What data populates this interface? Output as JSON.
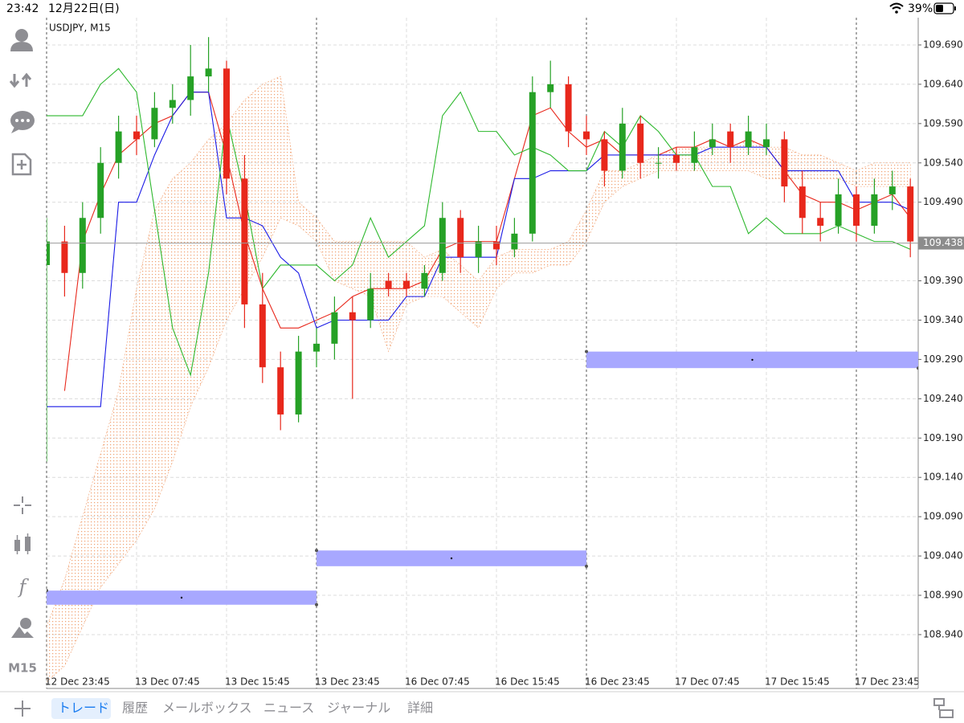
{
  "status_bar": {
    "time": "23:42",
    "date": "12月22日(日)",
    "battery": "39%"
  },
  "toolbar": {
    "timeframe": "M15"
  },
  "tabs": [
    "トレード",
    "履歴",
    "メールボックス",
    "ニュース",
    "ジャーナル",
    "詳細"
  ],
  "chart_data": {
    "type": "candlestick",
    "title": "USDJPY, M15",
    "categories": [
      "12 Dec 23:45",
      null,
      null,
      null,
      null,
      "13 Dec 07:45",
      null,
      null,
      null,
      null,
      "13 Dec 15:45",
      null,
      null,
      null,
      null,
      "13 Dec 23:45",
      null,
      null,
      null,
      null,
      "16 Dec 07:45",
      null,
      null,
      null,
      null,
      "16 Dec 15:45",
      null,
      null,
      null,
      null,
      "16 Dec 23:45",
      null,
      null,
      null,
      null,
      "17 Dec 07:45",
      null,
      null,
      null,
      null,
      "17 Dec 15:45",
      null,
      null,
      null,
      null,
      "17 Dec 23:45",
      null,
      null,
      null
    ],
    "open": [
      109.41,
      109.44,
      109.4,
      109.47,
      109.54,
      109.58,
      109.57,
      109.61,
      109.62,
      109.65,
      109.66,
      109.52,
      109.36,
      109.28,
      109.22,
      109.3,
      109.31,
      109.35,
      109.34,
      109.39,
      109.39,
      109.38,
      109.4,
      109.47,
      109.42,
      109.44,
      109.43,
      109.45,
      109.63,
      109.64,
      109.58,
      109.57,
      109.53,
      109.59,
      109.54,
      109.55,
      109.54,
      109.56,
      109.58,
      109.56,
      109.56,
      109.57,
      109.51,
      109.47,
      109.46,
      109.5,
      109.46,
      109.5,
      109.51
    ],
    "high": [
      109.47,
      109.46,
      109.49,
      109.56,
      109.6,
      109.6,
      109.63,
      109.64,
      109.69,
      109.7,
      109.67,
      109.55,
      109.4,
      109.3,
      109.32,
      109.33,
      109.37,
      109.37,
      109.4,
      109.4,
      109.4,
      109.41,
      109.49,
      109.48,
      109.46,
      109.46,
      109.47,
      109.65,
      109.67,
      109.65,
      109.6,
      109.58,
      109.61,
      109.6,
      109.56,
      109.56,
      109.58,
      109.59,
      109.59,
      109.6,
      109.59,
      109.58,
      109.53,
      109.49,
      109.52,
      109.51,
      109.52,
      109.53,
      109.52
    ],
    "low": [
      109.16,
      109.37,
      109.38,
      109.45,
      109.52,
      109.55,
      109.56,
      109.59,
      109.6,
      109.63,
      109.5,
      109.33,
      109.26,
      109.2,
      109.21,
      109.28,
      109.29,
      109.24,
      109.33,
      109.37,
      109.37,
      109.37,
      109.39,
      109.4,
      109.4,
      109.41,
      109.42,
      109.44,
      109.61,
      109.56,
      109.55,
      109.51,
      109.52,
      109.52,
      109.52,
      109.53,
      109.53,
      109.55,
      109.54,
      109.55,
      109.55,
      109.49,
      109.45,
      109.44,
      109.45,
      109.44,
      109.45,
      109.48,
      109.42
    ],
    "close": [
      109.44,
      109.4,
      109.47,
      109.54,
      109.58,
      109.57,
      109.61,
      109.62,
      109.65,
      109.66,
      109.52,
      109.36,
      109.28,
      109.22,
      109.3,
      109.31,
      109.35,
      109.34,
      109.38,
      109.38,
      109.38,
      109.4,
      109.47,
      109.42,
      109.44,
      109.43,
      109.45,
      109.63,
      109.64,
      109.58,
      109.57,
      109.53,
      109.59,
      109.54,
      109.54,
      109.54,
      109.56,
      109.57,
      109.56,
      109.58,
      109.57,
      109.51,
      109.47,
      109.46,
      109.5,
      109.46,
      109.5,
      109.51,
      109.44
    ],
    "up_color": "#26a126",
    "down_color": "#e8281c",
    "lines": [
      {
        "color": "#e8281c",
        "values": [
          null,
          109.25,
          109.44,
          109.5,
          109.55,
          109.57,
          109.59,
          109.6,
          109.63,
          109.63,
          109.55,
          109.45,
          109.38,
          109.33,
          109.33,
          109.34,
          109.35,
          109.37,
          109.38,
          109.38,
          109.38,
          109.39,
          109.43,
          109.44,
          109.44,
          109.44,
          109.52,
          109.6,
          109.61,
          109.58,
          109.56,
          109.57,
          109.55,
          109.55,
          109.55,
          109.56,
          109.56,
          109.57,
          109.56,
          109.57,
          109.56,
          109.53,
          109.5,
          109.49,
          109.49,
          109.48,
          109.49,
          109.5,
          109.47
        ]
      },
      {
        "color": "#1a1ae6",
        "values": [
          109.23,
          109.23,
          109.23,
          109.23,
          109.49,
          109.49,
          109.55,
          109.6,
          109.63,
          109.63,
          109.47,
          109.47,
          109.46,
          109.42,
          109.4,
          109.33,
          109.34,
          109.34,
          109.34,
          109.34,
          109.37,
          109.37,
          109.42,
          109.42,
          109.42,
          109.42,
          109.52,
          109.52,
          109.53,
          109.53,
          109.53,
          109.55,
          109.55,
          109.55,
          109.55,
          109.55,
          109.55,
          109.56,
          109.56,
          109.56,
          109.56,
          109.53,
          109.53,
          109.53,
          109.53,
          109.49,
          109.49,
          109.49,
          109.48
        ]
      },
      {
        "color": "#2db82d",
        "values": [
          109.6,
          109.6,
          109.6,
          109.64,
          109.66,
          109.63,
          109.48,
          109.33,
          109.27,
          109.4,
          109.6,
          109.5,
          109.38,
          109.41,
          109.41,
          109.41,
          109.39,
          109.41,
          109.47,
          109.42,
          109.44,
          109.46,
          109.6,
          109.63,
          109.58,
          109.58,
          109.55,
          109.56,
          109.55,
          109.53,
          109.53,
          109.58,
          109.56,
          109.6,
          109.58,
          109.55,
          109.55,
          109.51,
          109.51,
          109.45,
          109.47,
          109.45,
          109.45,
          109.45,
          109.46,
          109.45,
          109.44,
          109.44,
          109.43
        ]
      }
    ],
    "cloud": {
      "color": "#f0a070",
      "upper": [
        108.95,
        109.01,
        109.09,
        109.17,
        109.25,
        109.38,
        109.48,
        109.52,
        109.54,
        109.57,
        109.59,
        109.62,
        109.64,
        109.65,
        109.49,
        109.47,
        109.44,
        109.44,
        109.44,
        109.44,
        109.44,
        109.42,
        109.43,
        109.41,
        109.39,
        109.42,
        109.43,
        109.43,
        109.43,
        109.44,
        109.48,
        109.53,
        109.53,
        109.54,
        109.55,
        109.56,
        109.56,
        109.56,
        109.56,
        109.57,
        109.56,
        109.56,
        109.55,
        109.55,
        109.54,
        109.53,
        109.54,
        109.54,
        109.54
      ],
      "lower": [
        108.88,
        108.9,
        108.95,
        109.0,
        109.03,
        109.06,
        109.1,
        109.16,
        109.23,
        109.28,
        109.34,
        109.38,
        109.42,
        109.47,
        109.46,
        109.44,
        109.39,
        109.38,
        109.37,
        109.3,
        109.36,
        109.37,
        109.37,
        109.35,
        109.33,
        109.38,
        109.4,
        109.4,
        109.41,
        109.41,
        109.44,
        109.49,
        109.51,
        109.52,
        109.53,
        109.53,
        109.53,
        109.53,
        109.53,
        109.53,
        109.52,
        109.52,
        109.52,
        109.52,
        109.52,
        109.51,
        109.51,
        109.51,
        109.51
      ]
    },
    "zones": {
      "color": "#a8a8ff",
      "items": [
        {
          "high": 108.996,
          "low": 108.978
        },
        {
          "high": 109.047,
          "low": 109.027
        },
        {
          "high": 109.3,
          "low": 109.279
        }
      ]
    },
    "last_price": 109.438,
    "ylim": [
      108.8715,
      109.7247
    ],
    "yticks": [
      {
        "value": 109.69,
        "label": "109.690"
      },
      {
        "value": 109.64,
        "label": "109.640"
      },
      {
        "value": 109.59,
        "label": "109.590"
      },
      {
        "value": 109.54,
        "label": "109.540"
      },
      {
        "value": 109.49,
        "label": "109.490"
      },
      {
        "value": 109.39,
        "label": "109.390"
      },
      {
        "value": 109.34,
        "label": "109.340"
      },
      {
        "value": 109.29,
        "label": "109.290"
      },
      {
        "value": 109.24,
        "label": "109.240"
      },
      {
        "value": 109.19,
        "label": "109.190"
      },
      {
        "value": 109.14,
        "label": "109.140"
      },
      {
        "value": 109.09,
        "label": "109.090"
      },
      {
        "value": 109.04,
        "label": "109.040"
      },
      {
        "value": 108.99,
        "label": "108.990"
      },
      {
        "value": 108.94,
        "label": "108.940"
      }
    ],
    "grid": true
  }
}
